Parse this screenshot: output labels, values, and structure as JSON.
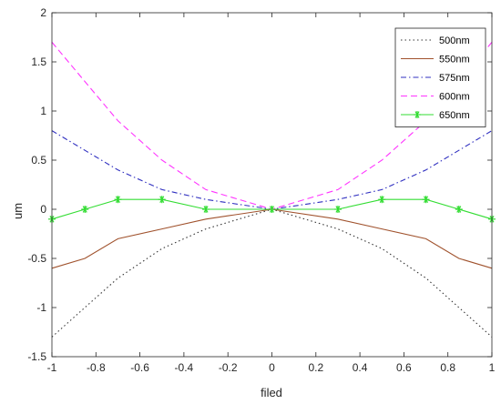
{
  "chart_data": {
    "type": "line",
    "xlabel": "filed",
    "ylabel": "um",
    "xlim": [
      -1,
      1
    ],
    "ylim": [
      -1.5,
      2
    ],
    "xticks": [
      -1,
      -0.8,
      -0.6,
      -0.4,
      -0.2,
      0,
      0.2,
      0.4,
      0.6,
      0.8,
      1
    ],
    "yticks": [
      -1.5,
      -1,
      -0.5,
      0,
      0.5,
      1,
      1.5,
      2
    ],
    "xtick_labels": [
      "-1",
      "-0.8",
      "-0.6",
      "-0.4",
      "-0.2",
      "0",
      "0.2",
      "0.4",
      "0.6",
      "0.8",
      "1"
    ],
    "ytick_labels": [
      "-1.5",
      "-1",
      "-0.5",
      "0",
      "0.5",
      "1",
      "1.5",
      "2"
    ],
    "grid": false,
    "legend_position": "top-right",
    "series": [
      {
        "name": "500nm",
        "color": "#333333",
        "dash": "1.5,3",
        "marker": "none",
        "x": [
          -1,
          -0.85,
          -0.7,
          -0.5,
          -0.3,
          0,
          0.3,
          0.5,
          0.7,
          0.85,
          1
        ],
        "y": [
          -1.3,
          -1.0,
          -0.7,
          -0.4,
          -0.2,
          0,
          -0.2,
          -0.4,
          -0.7,
          -1.0,
          -1.3
        ]
      },
      {
        "name": "550nm",
        "color": "#a0522d",
        "dash": "",
        "marker": "none",
        "x": [
          -1,
          -0.85,
          -0.7,
          -0.5,
          -0.3,
          0,
          0.3,
          0.5,
          0.7,
          0.85,
          1
        ],
        "y": [
          -0.6,
          -0.5,
          -0.3,
          -0.2,
          -0.1,
          0,
          -0.1,
          -0.2,
          -0.3,
          -0.5,
          -0.6
        ]
      },
      {
        "name": "575nm",
        "color": "#3030c0",
        "dash": "6,3,1.5,3",
        "marker": "none",
        "x": [
          -1,
          -0.85,
          -0.7,
          -0.5,
          -0.3,
          0,
          0.3,
          0.5,
          0.7,
          0.85,
          1
        ],
        "y": [
          0.8,
          0.6,
          0.4,
          0.2,
          0.1,
          0,
          0.1,
          0.2,
          0.4,
          0.6,
          0.8
        ]
      },
      {
        "name": "600nm",
        "color": "#ff33ff",
        "dash": "7,4",
        "marker": "none",
        "x": [
          -1,
          -0.85,
          -0.7,
          -0.5,
          -0.3,
          0,
          0.3,
          0.5,
          0.7,
          0.85,
          1
        ],
        "y": [
          1.7,
          1.3,
          0.9,
          0.5,
          0.2,
          0,
          0.2,
          0.5,
          0.9,
          1.3,
          1.7
        ]
      },
      {
        "name": "650nm",
        "color": "#33dd33",
        "dash": "",
        "marker": "star",
        "x": [
          -1,
          -0.85,
          -0.7,
          -0.5,
          -0.3,
          0,
          0.3,
          0.5,
          0.7,
          0.85,
          1
        ],
        "y": [
          -0.1,
          0,
          0.1,
          0.1,
          0,
          0,
          0,
          0.1,
          0.1,
          0,
          -0.1
        ]
      }
    ]
  }
}
